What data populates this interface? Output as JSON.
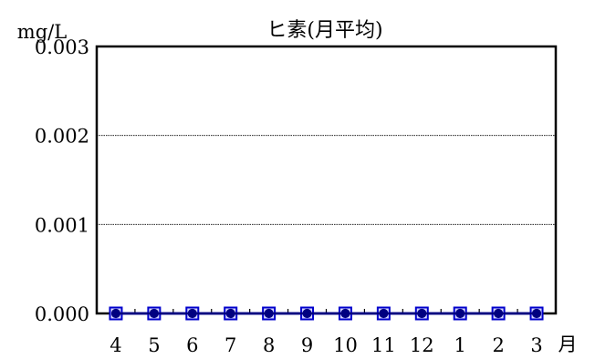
{
  "chart_data": {
    "type": "line",
    "title": "ヒ素(月平均)",
    "ylabel": "mg/L",
    "xlabel": "月",
    "categories": [
      "4",
      "5",
      "6",
      "7",
      "8",
      "9",
      "10",
      "11",
      "12",
      "1",
      "2",
      "3"
    ],
    "ylim": [
      0,
      0.003
    ],
    "yticks": [
      "0.000",
      "0.001",
      "0.002",
      "0.003"
    ],
    "grid": true,
    "series": [
      {
        "values": [
          0,
          0,
          0,
          0,
          0,
          0,
          0,
          0,
          0,
          0,
          0,
          0
        ],
        "color": "#0000cc",
        "marker": "square",
        "marker_fill": "#d8d8ff"
      },
      {
        "values": [
          0,
          0,
          0,
          0,
          0,
          0,
          0,
          0,
          0,
          0,
          0,
          0
        ],
        "color": "#000080",
        "marker": "circle",
        "marker_fill": "#000080"
      }
    ]
  }
}
